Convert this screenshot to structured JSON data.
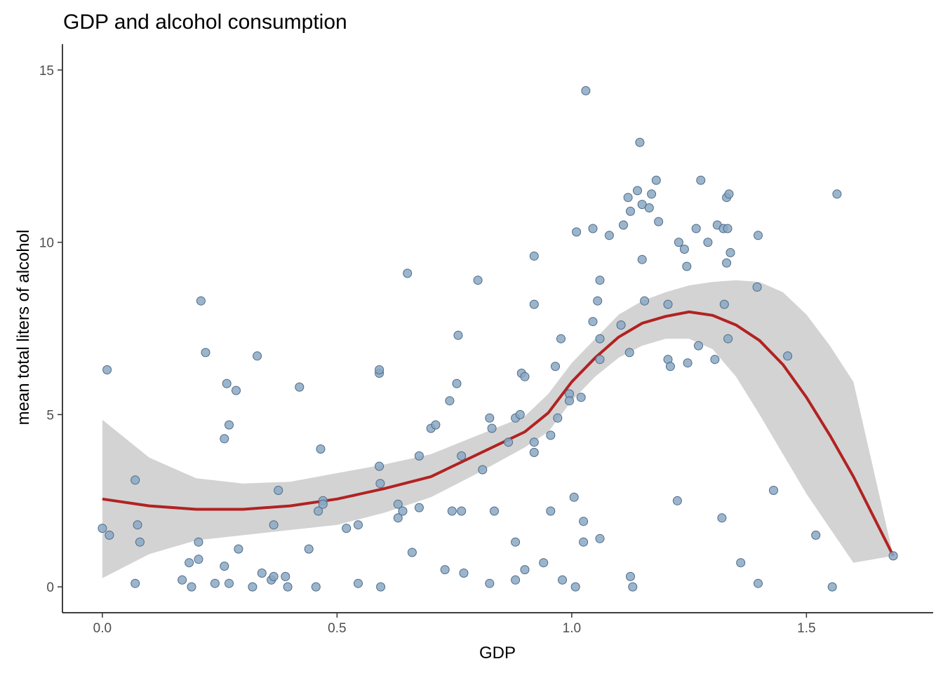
{
  "chart_data": {
    "type": "scatter",
    "title": "GDP and alcohol consumption",
    "xlabel": "GDP",
    "ylabel": "mean total liters of alcohol",
    "xlim": [
      -0.085,
      1.77
    ],
    "ylim": [
      -0.75,
      15.75
    ],
    "xticks": [
      0.0,
      0.5,
      1.0,
      1.5
    ],
    "xtick_labels": [
      "0.0",
      "0.5",
      "1.0",
      "1.5"
    ],
    "yticks": [
      0,
      5,
      10,
      15
    ],
    "ytick_labels": [
      "0",
      "5",
      "10",
      "15"
    ],
    "grid": false,
    "legend": "none",
    "colors": {
      "point_fill": "#8aa8c4",
      "point_stroke": "#4f6a86",
      "smooth_line": "#b22222",
      "ribbon": "#d3d3d3"
    },
    "points": [
      [
        0.0,
        1.7
      ],
      [
        0.01,
        6.3
      ],
      [
        0.015,
        1.5
      ],
      [
        0.07,
        3.1
      ],
      [
        0.07,
        0.1
      ],
      [
        0.075,
        1.8
      ],
      [
        0.08,
        1.3
      ],
      [
        0.17,
        0.2
      ],
      [
        0.185,
        0.7
      ],
      [
        0.19,
        0.0
      ],
      [
        0.205,
        1.3
      ],
      [
        0.205,
        0.8
      ],
      [
        0.21,
        8.3
      ],
      [
        0.22,
        6.8
      ],
      [
        0.24,
        0.1
      ],
      [
        0.26,
        4.3
      ],
      [
        0.26,
        0.6
      ],
      [
        0.265,
        5.9
      ],
      [
        0.27,
        4.7
      ],
      [
        0.27,
        0.1
      ],
      [
        0.285,
        5.7
      ],
      [
        0.29,
        1.1
      ],
      [
        0.32,
        0.0
      ],
      [
        0.33,
        6.7
      ],
      [
        0.34,
        0.4
      ],
      [
        0.36,
        0.2
      ],
      [
        0.365,
        1.8
      ],
      [
        0.365,
        0.3
      ],
      [
        0.375,
        2.8
      ],
      [
        0.39,
        0.3
      ],
      [
        0.395,
        0.0
      ],
      [
        0.42,
        5.8
      ],
      [
        0.44,
        1.1
      ],
      [
        0.455,
        0.0
      ],
      [
        0.46,
        2.2
      ],
      [
        0.465,
        4.0
      ],
      [
        0.47,
        2.5
      ],
      [
        0.47,
        2.4
      ],
      [
        0.52,
        1.7
      ],
      [
        0.545,
        1.8
      ],
      [
        0.545,
        0.1
      ],
      [
        0.59,
        3.5
      ],
      [
        0.59,
        6.2
      ],
      [
        0.59,
        6.3
      ],
      [
        0.592,
        3.0
      ],
      [
        0.593,
        0.0
      ],
      [
        0.63,
        2.4
      ],
      [
        0.63,
        2.0
      ],
      [
        0.64,
        2.2
      ],
      [
        0.65,
        9.1
      ],
      [
        0.66,
        1.0
      ],
      [
        0.675,
        3.8
      ],
      [
        0.675,
        2.3
      ],
      [
        0.7,
        4.6
      ],
      [
        0.71,
        4.7
      ],
      [
        0.73,
        0.5
      ],
      [
        0.74,
        5.4
      ],
      [
        0.745,
        2.2
      ],
      [
        0.755,
        5.9
      ],
      [
        0.758,
        7.3
      ],
      [
        0.765,
        3.8
      ],
      [
        0.765,
        2.2
      ],
      [
        0.77,
        0.4
      ],
      [
        0.8,
        8.9
      ],
      [
        0.81,
        3.4
      ],
      [
        0.825,
        4.9
      ],
      [
        0.825,
        0.1
      ],
      [
        0.83,
        4.6
      ],
      [
        0.835,
        2.2
      ],
      [
        0.865,
        4.2
      ],
      [
        0.88,
        4.9
      ],
      [
        0.88,
        1.3
      ],
      [
        0.88,
        0.2
      ],
      [
        0.89,
        5.0
      ],
      [
        0.893,
        6.2
      ],
      [
        0.9,
        6.1
      ],
      [
        0.9,
        0.5
      ],
      [
        0.92,
        9.6
      ],
      [
        0.92,
        8.2
      ],
      [
        0.92,
        4.2
      ],
      [
        0.92,
        3.9
      ],
      [
        0.94,
        0.7
      ],
      [
        0.955,
        4.4
      ],
      [
        0.955,
        2.2
      ],
      [
        0.965,
        6.4
      ],
      [
        0.97,
        4.9
      ],
      [
        0.977,
        7.2
      ],
      [
        0.98,
        0.2
      ],
      [
        0.995,
        5.6
      ],
      [
        0.995,
        5.4
      ],
      [
        1.005,
        2.6
      ],
      [
        1.008,
        0.0
      ],
      [
        1.01,
        10.3
      ],
      [
        1.02,
        5.5
      ],
      [
        1.025,
        1.9
      ],
      [
        1.025,
        1.3
      ],
      [
        1.03,
        14.4
      ],
      [
        1.045,
        10.4
      ],
      [
        1.045,
        7.7
      ],
      [
        1.055,
        8.3
      ],
      [
        1.06,
        8.9
      ],
      [
        1.06,
        6.6
      ],
      [
        1.06,
        7.2
      ],
      [
        1.06,
        1.4
      ],
      [
        1.08,
        10.2
      ],
      [
        1.105,
        7.6
      ],
      [
        1.11,
        10.5
      ],
      [
        1.12,
        11.3
      ],
      [
        1.123,
        6.8
      ],
      [
        1.125,
        10.9
      ],
      [
        1.125,
        0.3
      ],
      [
        1.13,
        0.0
      ],
      [
        1.14,
        11.5
      ],
      [
        1.145,
        12.9
      ],
      [
        1.15,
        11.1
      ],
      [
        1.15,
        9.5
      ],
      [
        1.155,
        8.3
      ],
      [
        1.165,
        11.0
      ],
      [
        1.17,
        11.4
      ],
      [
        1.18,
        11.8
      ],
      [
        1.185,
        10.6
      ],
      [
        1.205,
        6.6
      ],
      [
        1.205,
        8.2
      ],
      [
        1.21,
        6.4
      ],
      [
        1.225,
        2.5
      ],
      [
        1.228,
        10.0
      ],
      [
        1.24,
        9.8
      ],
      [
        1.245,
        9.3
      ],
      [
        1.247,
        6.5
      ],
      [
        1.265,
        10.4
      ],
      [
        1.27,
        7.0
      ],
      [
        1.275,
        11.8
      ],
      [
        1.29,
        10.0
      ],
      [
        1.305,
        6.6
      ],
      [
        1.31,
        10.5
      ],
      [
        1.32,
        2.0
      ],
      [
        1.323,
        10.4
      ],
      [
        1.325,
        8.2
      ],
      [
        1.33,
        11.3
      ],
      [
        1.33,
        9.4
      ],
      [
        1.332,
        10.4
      ],
      [
        1.333,
        7.2
      ],
      [
        1.335,
        11.4
      ],
      [
        1.338,
        9.7
      ],
      [
        1.36,
        0.7
      ],
      [
        1.395,
        8.7
      ],
      [
        1.397,
        10.2
      ],
      [
        1.397,
        0.1
      ],
      [
        1.43,
        2.8
      ],
      [
        1.46,
        6.7
      ],
      [
        1.52,
        1.5
      ],
      [
        1.555,
        0.0
      ],
      [
        1.565,
        11.4
      ],
      [
        1.685,
        0.9
      ]
    ],
    "smooth": {
      "method": "loess",
      "x": [
        0.0,
        0.1,
        0.2,
        0.3,
        0.4,
        0.5,
        0.6,
        0.7,
        0.8,
        0.9,
        0.95,
        1.0,
        1.05,
        1.1,
        1.15,
        1.2,
        1.25,
        1.3,
        1.35,
        1.4,
        1.45,
        1.5,
        1.55,
        1.6,
        1.685
      ],
      "y": [
        2.55,
        2.35,
        2.25,
        2.25,
        2.35,
        2.55,
        2.85,
        3.2,
        3.85,
        4.5,
        5.05,
        5.95,
        6.65,
        7.25,
        7.65,
        7.85,
        7.98,
        7.88,
        7.6,
        7.15,
        6.45,
        5.5,
        4.4,
        3.2,
        0.9
      ],
      "ymin": [
        0.25,
        0.95,
        1.35,
        1.5,
        1.65,
        1.8,
        2.15,
        2.6,
        3.3,
        4.05,
        4.5,
        5.4,
        6.1,
        6.65,
        7.0,
        7.2,
        7.2,
        6.9,
        6.1,
        5.0,
        3.85,
        2.7,
        1.7,
        0.7,
        0.9
      ],
      "ymax": [
        4.85,
        3.75,
        3.15,
        3.0,
        3.05,
        3.3,
        3.55,
        3.85,
        4.4,
        4.95,
        5.6,
        6.5,
        7.2,
        7.9,
        8.3,
        8.55,
        8.75,
        8.85,
        8.9,
        8.85,
        8.55,
        7.9,
        7.0,
        5.95,
        0.9
      ]
    }
  }
}
